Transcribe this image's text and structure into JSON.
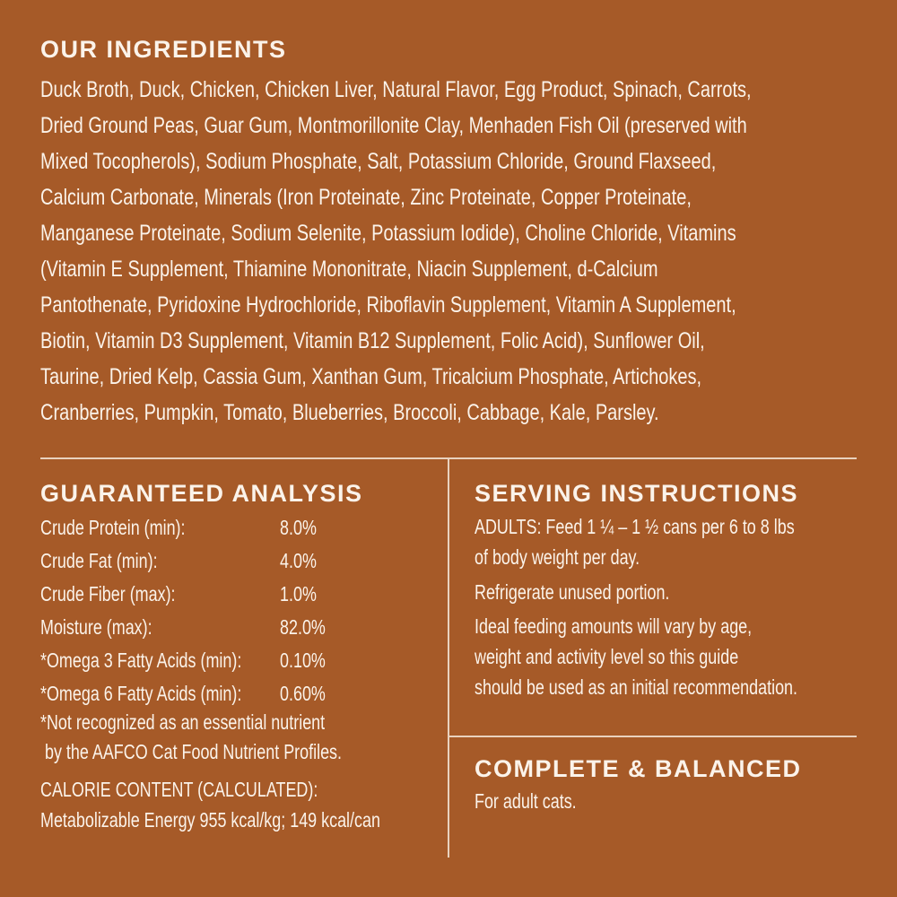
{
  "ingredients": {
    "title": "OUR INGREDIENTS",
    "lines": [
      "Duck Broth, Duck, Chicken, Chicken Liver, Natural Flavor, Egg Product, Spinach, Carrots,",
      "Dried Ground Peas, Guar Gum, Montmorillonite Clay, Menhaden Fish Oil (preserved with",
      "Mixed Tocopherols), Sodium Phosphate, Salt, Potassium Chloride, Ground Flaxseed,",
      "Calcium Carbonate, Minerals (Iron Proteinate, Zinc Proteinate, Copper Proteinate,",
      "Manganese Proteinate, Sodium Selenite, Potassium Iodide), Choline Chloride, Vitamins",
      "(Vitamin E Supplement, Thiamine Mononitrate, Niacin Supplement, d-Calcium",
      "Pantothenate, Pyridoxine Hydrochloride, Riboflavin Supplement, Vitamin A Supplement,",
      "Biotin, Vitamin D3 Supplement, Vitamin B12 Supplement, Folic Acid), Sunflower Oil,",
      "Taurine, Dried Kelp, Cassia Gum, Xanthan Gum, Tricalcium Phosphate, Artichokes,",
      "Cranberries, Pumpkin, Tomato, Blueberries, Broccoli, Cabbage, Kale, Parsley."
    ]
  },
  "analysis": {
    "title": "GUARANTEED ANALYSIS",
    "rows": [
      {
        "label": "Crude Protein (min):",
        "value": "8.0%"
      },
      {
        "label": "Crude Fat (min):",
        "value": "4.0%"
      },
      {
        "label": "Crude Fiber (max):",
        "value": "1.0%"
      },
      {
        "label": "Moisture (max):",
        "value": "82.0%"
      },
      {
        "label": "*Omega 3 Fatty Acids (min):",
        "value": "0.10%"
      },
      {
        "label": "*Omega 6 Fatty Acids (min):",
        "value": "0.60%"
      }
    ],
    "note_lines": [
      "*Not recognized as an essential nutrient",
      " by the AAFCO Cat Food Nutrient Profiles."
    ],
    "calorie_title": "CALORIE CONTENT (CALCULATED):",
    "calorie_value": "Metabolizable Energy 955 kcal/kg; 149 kcal/can"
  },
  "serving": {
    "title": "SERVING INSTRUCTIONS",
    "lines": [
      "ADULTS: Feed 1 ¼ – 1 ½ cans per 6 to 8 lbs",
      "of body weight per day.",
      "Refrigerate unused portion.",
      "Ideal feeding amounts will vary by age,",
      "weight and activity level so this guide",
      "should be used as an initial recommendation."
    ]
  },
  "complete": {
    "title": "COMPLETE & BALANCED",
    "text": "For adult cats."
  },
  "colors": {
    "background": "#A65A28",
    "text": "#FBF3EA"
  }
}
